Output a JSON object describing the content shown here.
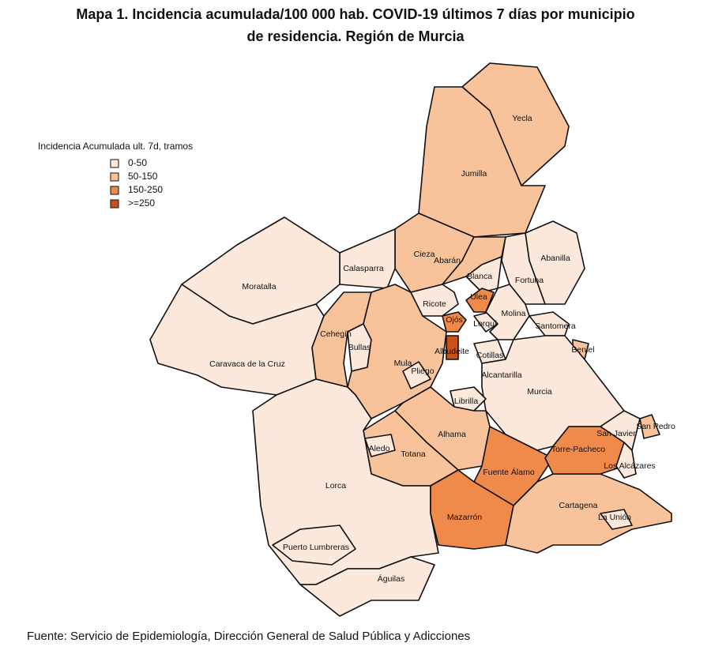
{
  "title": [
    "Mapa 1. Incidencia acumulada/100 000 hab. COVID-19 últimos 7 días por municipio",
    "de residencia. Región de Murcia"
  ],
  "legend": {
    "title": "Incidencia Acumulada ult. 7d, tramos",
    "items": [
      {
        "label": "0-50",
        "color": "#fce9dc"
      },
      {
        "label": "50-150",
        "color": "#f8c39a"
      },
      {
        "label": "150-250",
        "color": "#f08a4b"
      },
      {
        "label": ">=250",
        "color": "#c8501a"
      }
    ]
  },
  "municipalities": [
    {
      "name": "Yecla",
      "color": "#f8c39a"
    },
    {
      "name": "Jumilla",
      "color": "#f8c39a"
    },
    {
      "name": "Abanilla",
      "color": "#fce9dc"
    },
    {
      "name": "Fortuna",
      "color": "#fce9dc"
    },
    {
      "name": "Cieza",
      "color": "#f8c39a"
    },
    {
      "name": "Abarán",
      "color": "#f8c39a"
    },
    {
      "name": "Blanca",
      "color": "#fce9dc"
    },
    {
      "name": "Calasparra",
      "color": "#fce9dc"
    },
    {
      "name": "Moratalla",
      "color": "#fce9dc"
    },
    {
      "name": "Caravaca de la Cruz",
      "color": "#fce9dc"
    },
    {
      "name": "Cehegín",
      "color": "#f8c39a"
    },
    {
      "name": "Bullas",
      "color": "#fce9dc"
    },
    {
      "name": "Mula",
      "color": "#f8c39a"
    },
    {
      "name": "Pliego",
      "color": "#fce9dc"
    },
    {
      "name": "Ricote",
      "color": "#fce9dc"
    },
    {
      "name": "Ulea",
      "color": "#f08a4b"
    },
    {
      "name": "Ojós",
      "color": "#f08a4b"
    },
    {
      "name": "Lorquí",
      "color": "#fce9dc"
    },
    {
      "name": "Molina",
      "color": "#fce9dc"
    },
    {
      "name": "Santomera",
      "color": "#fce9dc"
    },
    {
      "name": "Beniel",
      "color": "#f8c39a"
    },
    {
      "name": "Cotillas",
      "color": "#fce9dc"
    },
    {
      "name": "Albudeite",
      "color": "#c8501a"
    },
    {
      "name": "Alcantarilla",
      "color": "#fce9dc"
    },
    {
      "name": "Murcia",
      "color": "#fce9dc"
    },
    {
      "name": "Librilla",
      "color": "#fce9dc"
    },
    {
      "name": "Alhama",
      "color": "#f8c39a"
    },
    {
      "name": "Totana",
      "color": "#f8c39a"
    },
    {
      "name": "Aledo",
      "color": "#fce9dc"
    },
    {
      "name": "Lorca",
      "color": "#fce9dc"
    },
    {
      "name": "Puerto Lumbreras",
      "color": "#fce9dc"
    },
    {
      "name": "Águilas",
      "color": "#fce9dc"
    },
    {
      "name": "Fuente Álamo",
      "color": "#f08a4b"
    },
    {
      "name": "Mazarrón",
      "color": "#f08a4b"
    },
    {
      "name": "Cartagena",
      "color": "#f8c39a"
    },
    {
      "name": "Torre-Pacheco",
      "color": "#f08a4b"
    },
    {
      "name": "Los Alcázares",
      "color": "#fce9dc"
    },
    {
      "name": "San Javier",
      "color": "#fce9dc"
    },
    {
      "name": "San Pedro",
      "color": "#f8c39a"
    },
    {
      "name": "La Unión",
      "color": "#fce9dc"
    }
  ],
  "source": "Fuente: Servicio de Epidemiología, Dirección General de Salud Pública y Adicciones"
}
